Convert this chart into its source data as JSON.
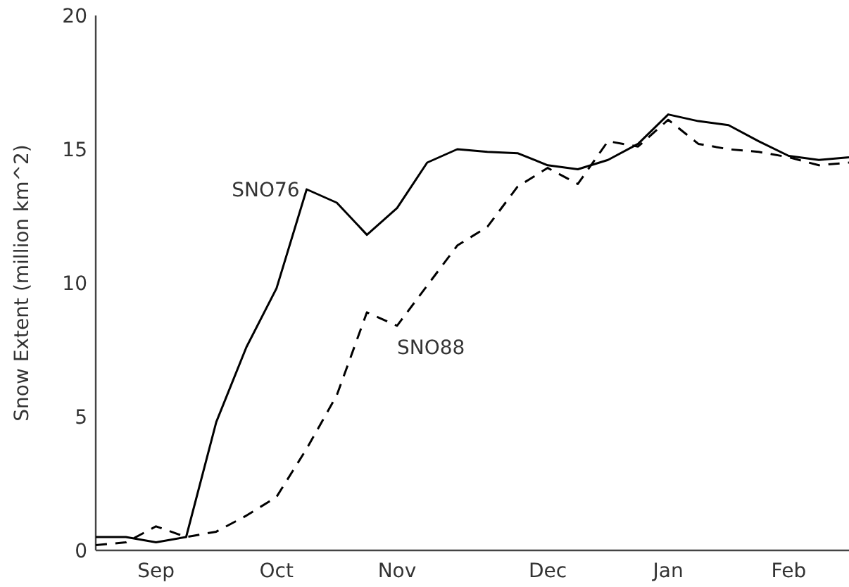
{
  "chart_data": {
    "type": "line",
    "ylabel": "Snow Extent (million km^2)",
    "categories": [
      null,
      null,
      "Sep",
      null,
      null,
      null,
      "Oct",
      null,
      null,
      null,
      "Nov",
      null,
      null,
      null,
      null,
      "Dec",
      null,
      null,
      null,
      "Jan",
      null,
      null,
      null,
      "Feb",
      null,
      null
    ],
    "series": [
      {
        "name": "SNO76",
        "color": "#000000",
        "line_style": "solid",
        "values": [
          0.5,
          0.5,
          0.3,
          0.5,
          4.8,
          7.6,
          9.8,
          13.5,
          13.0,
          11.8,
          12.8,
          14.5,
          15.0,
          14.9,
          14.85,
          14.4,
          14.25,
          14.6,
          15.2,
          16.3,
          16.05,
          15.9,
          15.3,
          14.75,
          14.6,
          14.7
        ]
      },
      {
        "name": "SNO88",
        "color": "#000000",
        "line_style": "dashed",
        "values": [
          0.2,
          0.3,
          0.9,
          0.5,
          0.7,
          1.3,
          2.0,
          3.8,
          5.8,
          8.9,
          8.4,
          9.9,
          11.4,
          12.1,
          13.6,
          14.3,
          13.7,
          15.3,
          15.1,
          16.1,
          15.2,
          15.0,
          14.9,
          14.7,
          14.4,
          14.5
        ]
      }
    ],
    "ylim": [
      0,
      20
    ],
    "yticks": [
      0,
      5,
      10,
      15,
      20
    ],
    "grid": false,
    "legend": false
  }
}
